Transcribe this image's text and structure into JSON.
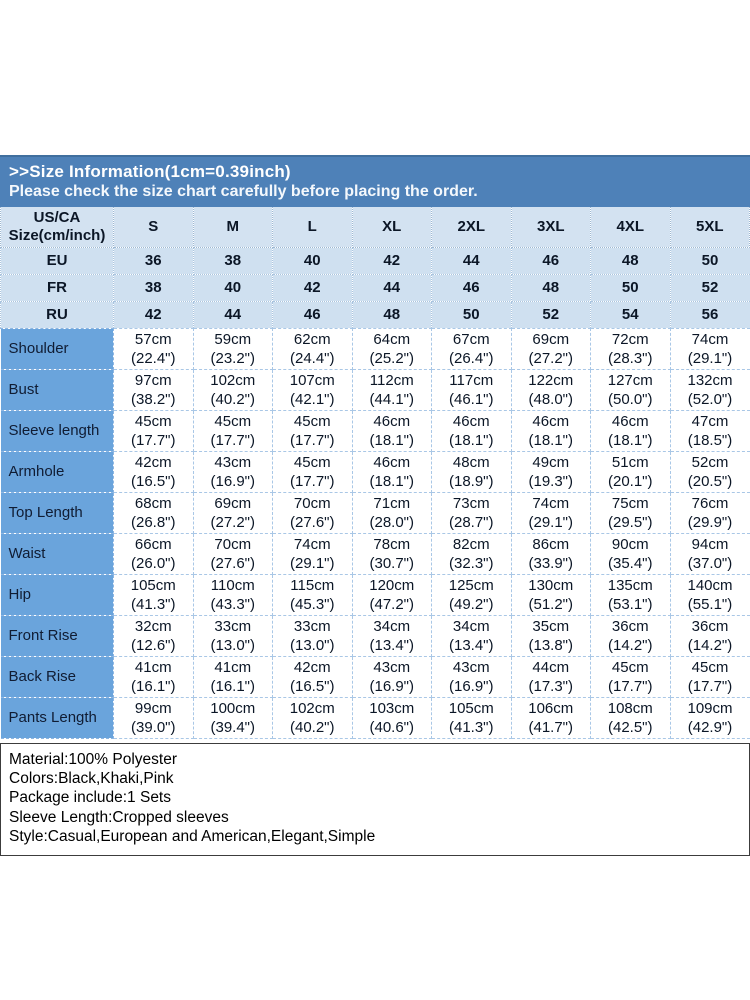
{
  "banner": {
    "title": ">>Size Information(1cm=0.39inch)",
    "subtitle": "Please check the size chart carefully before placing the order."
  },
  "chart_data": {
    "type": "table",
    "corner_header": [
      "US/CA",
      "Size(cm/inch)"
    ],
    "columns": [
      "S",
      "M",
      "L",
      "XL",
      "2XL",
      "3XL",
      "4XL",
      "5XL"
    ],
    "region_rows": [
      {
        "label": "EU",
        "values": [
          "36",
          "38",
          "40",
          "42",
          "44",
          "46",
          "48",
          "50"
        ]
      },
      {
        "label": "FR",
        "values": [
          "38",
          "40",
          "42",
          "44",
          "46",
          "48",
          "50",
          "52"
        ]
      },
      {
        "label": "RU",
        "values": [
          "42",
          "44",
          "46",
          "48",
          "50",
          "52",
          "54",
          "56"
        ]
      }
    ],
    "measurement_rows": [
      {
        "label": "Shoulder",
        "values": [
          {
            "cm": "57cm",
            "inch": "(22.4\")"
          },
          {
            "cm": "59cm",
            "inch": "(23.2\")"
          },
          {
            "cm": "62cm",
            "inch": "(24.4\")"
          },
          {
            "cm": "64cm",
            "inch": "(25.2\")"
          },
          {
            "cm": "67cm",
            "inch": "(26.4\")"
          },
          {
            "cm": "69cm",
            "inch": "(27.2\")"
          },
          {
            "cm": "72cm",
            "inch": "(28.3\")"
          },
          {
            "cm": "74cm",
            "inch": "(29.1\")"
          }
        ]
      },
      {
        "label": "Bust",
        "values": [
          {
            "cm": "97cm",
            "inch": "(38.2\")"
          },
          {
            "cm": "102cm",
            "inch": "(40.2\")"
          },
          {
            "cm": "107cm",
            "inch": "(42.1\")"
          },
          {
            "cm": "112cm",
            "inch": "(44.1\")"
          },
          {
            "cm": "117cm",
            "inch": "(46.1\")"
          },
          {
            "cm": "122cm",
            "inch": "(48.0\")"
          },
          {
            "cm": "127cm",
            "inch": "(50.0\")"
          },
          {
            "cm": "132cm",
            "inch": "(52.0\")"
          }
        ]
      },
      {
        "label": "Sleeve length",
        "values": [
          {
            "cm": "45cm",
            "inch": "(17.7\")"
          },
          {
            "cm": "45cm",
            "inch": "(17.7\")"
          },
          {
            "cm": "45cm",
            "inch": "(17.7\")"
          },
          {
            "cm": "46cm",
            "inch": "(18.1\")"
          },
          {
            "cm": "46cm",
            "inch": "(18.1\")"
          },
          {
            "cm": "46cm",
            "inch": "(18.1\")"
          },
          {
            "cm": "46cm",
            "inch": "(18.1\")"
          },
          {
            "cm": "47cm",
            "inch": "(18.5\")"
          }
        ]
      },
      {
        "label": "Armhole",
        "values": [
          {
            "cm": "42cm",
            "inch": "(16.5\")"
          },
          {
            "cm": "43cm",
            "inch": "(16.9\")"
          },
          {
            "cm": "45cm",
            "inch": "(17.7\")"
          },
          {
            "cm": "46cm",
            "inch": "(18.1\")"
          },
          {
            "cm": "48cm",
            "inch": "(18.9\")"
          },
          {
            "cm": "49cm",
            "inch": "(19.3\")"
          },
          {
            "cm": "51cm",
            "inch": "(20.1\")"
          },
          {
            "cm": "52cm",
            "inch": "(20.5\")"
          }
        ]
      },
      {
        "label": "Top Length",
        "values": [
          {
            "cm": "68cm",
            "inch": "(26.8\")"
          },
          {
            "cm": "69cm",
            "inch": "(27.2\")"
          },
          {
            "cm": "70cm",
            "inch": "(27.6\")"
          },
          {
            "cm": "71cm",
            "inch": "(28.0\")"
          },
          {
            "cm": "73cm",
            "inch": "(28.7\")"
          },
          {
            "cm": "74cm",
            "inch": "(29.1\")"
          },
          {
            "cm": "75cm",
            "inch": "(29.5\")"
          },
          {
            "cm": "76cm",
            "inch": "(29.9\")"
          }
        ]
      },
      {
        "label": "Waist",
        "values": [
          {
            "cm": "66cm",
            "inch": "(26.0\")"
          },
          {
            "cm": "70cm",
            "inch": "(27.6\")"
          },
          {
            "cm": "74cm",
            "inch": "(29.1\")"
          },
          {
            "cm": "78cm",
            "inch": "(30.7\")"
          },
          {
            "cm": "82cm",
            "inch": "(32.3\")"
          },
          {
            "cm": "86cm",
            "inch": "(33.9\")"
          },
          {
            "cm": "90cm",
            "inch": "(35.4\")"
          },
          {
            "cm": "94cm",
            "inch": "(37.0\")"
          }
        ]
      },
      {
        "label": "Hip",
        "values": [
          {
            "cm": "105cm",
            "inch": "(41.3\")"
          },
          {
            "cm": "110cm",
            "inch": "(43.3\")"
          },
          {
            "cm": "115cm",
            "inch": "(45.3\")"
          },
          {
            "cm": "120cm",
            "inch": "(47.2\")"
          },
          {
            "cm": "125cm",
            "inch": "(49.2\")"
          },
          {
            "cm": "130cm",
            "inch": "(51.2\")"
          },
          {
            "cm": "135cm",
            "inch": "(53.1\")"
          },
          {
            "cm": "140cm",
            "inch": "(55.1\")"
          }
        ]
      },
      {
        "label": "Front Rise",
        "values": [
          {
            "cm": "32cm",
            "inch": "(12.6\")"
          },
          {
            "cm": "33cm",
            "inch": "(13.0\")"
          },
          {
            "cm": "33cm",
            "inch": "(13.0\")"
          },
          {
            "cm": "34cm",
            "inch": "(13.4\")"
          },
          {
            "cm": "34cm",
            "inch": "(13.4\")"
          },
          {
            "cm": "35cm",
            "inch": "(13.8\")"
          },
          {
            "cm": "36cm",
            "inch": "(14.2\")"
          },
          {
            "cm": "36cm",
            "inch": "(14.2\")"
          }
        ]
      },
      {
        "label": "Back Rise",
        "values": [
          {
            "cm": "41cm",
            "inch": "(16.1\")"
          },
          {
            "cm": "41cm",
            "inch": "(16.1\")"
          },
          {
            "cm": "42cm",
            "inch": "(16.5\")"
          },
          {
            "cm": "43cm",
            "inch": "(16.9\")"
          },
          {
            "cm": "43cm",
            "inch": "(16.9\")"
          },
          {
            "cm": "44cm",
            "inch": "(17.3\")"
          },
          {
            "cm": "45cm",
            "inch": "(17.7\")"
          },
          {
            "cm": "45cm",
            "inch": "(17.7\")"
          }
        ]
      },
      {
        "label": "Pants Length",
        "values": [
          {
            "cm": "99cm",
            "inch": "(39.0\")"
          },
          {
            "cm": "100cm",
            "inch": "(39.4\")"
          },
          {
            "cm": "102cm",
            "inch": "(40.2\")"
          },
          {
            "cm": "103cm",
            "inch": "(40.6\")"
          },
          {
            "cm": "105cm",
            "inch": "(41.3\")"
          },
          {
            "cm": "106cm",
            "inch": "(41.7\")"
          },
          {
            "cm": "108cm",
            "inch": "(42.5\")"
          },
          {
            "cm": "109cm",
            "inch": "(42.9\")"
          }
        ]
      }
    ]
  },
  "footer": {
    "lines": [
      "Material:100% Polyester",
      "Colors:Black,Khaki,Pink",
      "Package include:1 Sets",
      "Sleeve Length:Cropped sleeves",
      "Style:Casual,European and American,Elegant,Simple"
    ]
  },
  "colors": {
    "banner_bg": "#4e81b8",
    "banner_text": "#ffffff",
    "header_cell_bg": "#d3e2f1",
    "region_row_bg": "#cfe0f0",
    "label_column_bg": "#6aa4dc",
    "data_cell_bg": "#ffffff",
    "cell_border": "#a9c7e6",
    "info_box_border": "#3c3c3c"
  }
}
